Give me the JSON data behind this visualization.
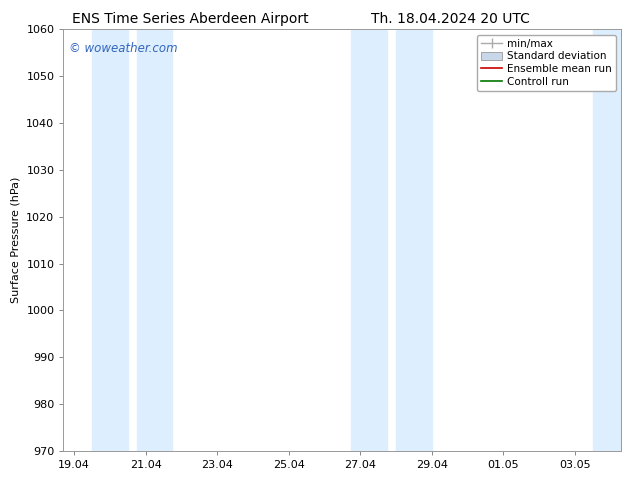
{
  "title_left": "ENS Time Series Aberdeen Airport",
  "title_right": "Th. 18.04.2024 20 UTC",
  "ylabel": "Surface Pressure (hPa)",
  "ylim": [
    970,
    1060
  ],
  "yticks": [
    970,
    980,
    990,
    1000,
    1010,
    1020,
    1030,
    1040,
    1050,
    1060
  ],
  "xtick_labels": [
    "19.04",
    "21.04",
    "23.04",
    "25.04",
    "27.04",
    "29.04",
    "01.05",
    "03.05"
  ],
  "xtick_positions": [
    0,
    2,
    4,
    6,
    8,
    10,
    12,
    14
  ],
  "xlim": [
    -0.3,
    15.3
  ],
  "watermark": "© woweather.com",
  "watermark_color": "#3366bb",
  "background_color": "#ffffff",
  "plot_bg_color": "#ffffff",
  "shaded_bands": [
    {
      "x_start": 0.5,
      "x_end": 1.5
    },
    {
      "x_start": 1.75,
      "x_end": 2.75
    },
    {
      "x_start": 7.75,
      "x_end": 8.75
    },
    {
      "x_start": 9.0,
      "x_end": 10.0
    },
    {
      "x_start": 14.5,
      "x_end": 15.3
    }
  ],
  "shade_color": "#ddeeff",
  "legend_labels": [
    "min/max",
    "Standard deviation",
    "Ensemble mean run",
    "Controll run"
  ],
  "minmax_color": "#aaaaaa",
  "std_facecolor": "#c8d8e8",
  "std_edgecolor": "#999999",
  "ensemble_color": "#cc0000",
  "control_color": "#007700",
  "title_fontsize": 10,
  "tick_fontsize": 8,
  "ylabel_fontsize": 8,
  "legend_fontsize": 7.5
}
